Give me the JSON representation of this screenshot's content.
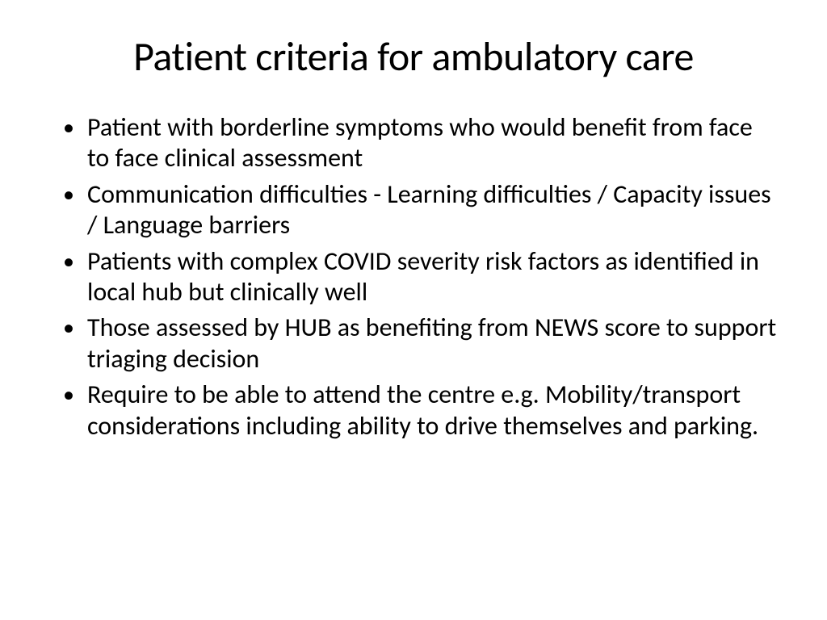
{
  "slide": {
    "title": "Patient criteria for ambulatory care",
    "bullets": [
      "Patient with borderline symptoms who would benefit from face to face clinical assessment",
      "Communication difficulties - Learning difficulties / Capacity issues / Language barriers",
      "Patients with complex COVID severity risk factors as identified in local hub but clinically well",
      "Those assessed by HUB as benefiting from NEWS score to support triaging decision",
      "Require to be able to attend the centre e.g. Mobility/transport considerations including ability to drive themselves and parking."
    ],
    "title_fontsize": 50,
    "body_fontsize": 32,
    "text_color": "#000000",
    "background_color": "#ffffff",
    "font_family": "Calibri"
  }
}
